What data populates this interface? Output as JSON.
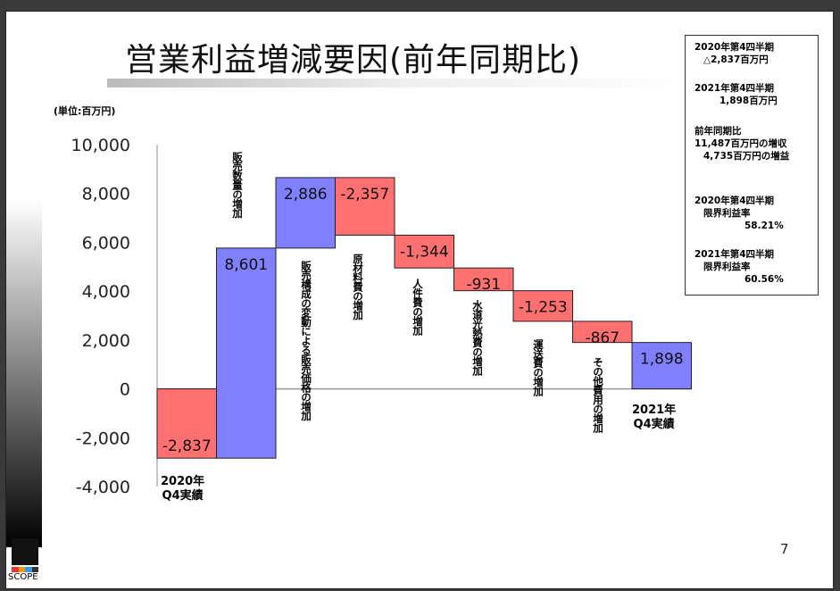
{
  "title": "営業利益増減要因(前年同期比)",
  "unit_label": "(単位:百万円)",
  "page_number": "7",
  "logo_text": "SCOPE",
  "info_box": {
    "block1": [
      "2020年第4四半期",
      "△2,837百万円"
    ],
    "block2": [
      "2021年第4四半期",
      "1,898百万円"
    ],
    "block3": [
      "前年同期比",
      "11,487百万円の増収",
      "4,735百万円の増益"
    ],
    "block4": [
      "2020年第4四半期",
      "限界利益率",
      "58.21%"
    ],
    "block5": [
      "2021年第4四半期",
      "限界利益率",
      "60.56%"
    ]
  },
  "chart_data": {
    "type": "bar",
    "subtype": "waterfall",
    "title": "営業利益増減要因(前年同期比)",
    "ylabel": "(単位:百万円)",
    "ylim": [
      -4000,
      10000
    ],
    "yticks": [
      "10,000",
      "8,000",
      "6,000",
      "4,000",
      "2,000",
      "0",
      "-2,000",
      "-4,000"
    ],
    "ytick_values": [
      10000,
      8000,
      6000,
      4000,
      2000,
      0,
      -2000,
      -4000
    ],
    "categories": [
      "2020年Q4実績",
      "販売数量の増加",
      "販売構成の変動による販売価格の増加",
      "原材料費の増加",
      "人件費の増加",
      "水道光熱費の増加",
      "運送費の増加",
      "その他費用の増加",
      "2021年Q4実績"
    ],
    "values": [
      -2837,
      8601,
      2886,
      -2357,
      -1344,
      -931,
      -1253,
      -867,
      1898
    ],
    "labels": [
      "-2,837",
      "8,601",
      "2,886",
      "-2,357",
      "-1,344",
      "-931",
      "-1,253",
      "-867",
      "1,898"
    ],
    "kinds": [
      "total",
      "delta",
      "delta",
      "delta",
      "delta",
      "delta",
      "delta",
      "delta",
      "total"
    ],
    "end_labels": {
      "start": [
        "2020年",
        "Q4実績"
      ],
      "end": [
        "2021年",
        "Q4実績"
      ]
    },
    "colors": {
      "positive": "#8080ff",
      "negative": "#ff7070"
    }
  }
}
